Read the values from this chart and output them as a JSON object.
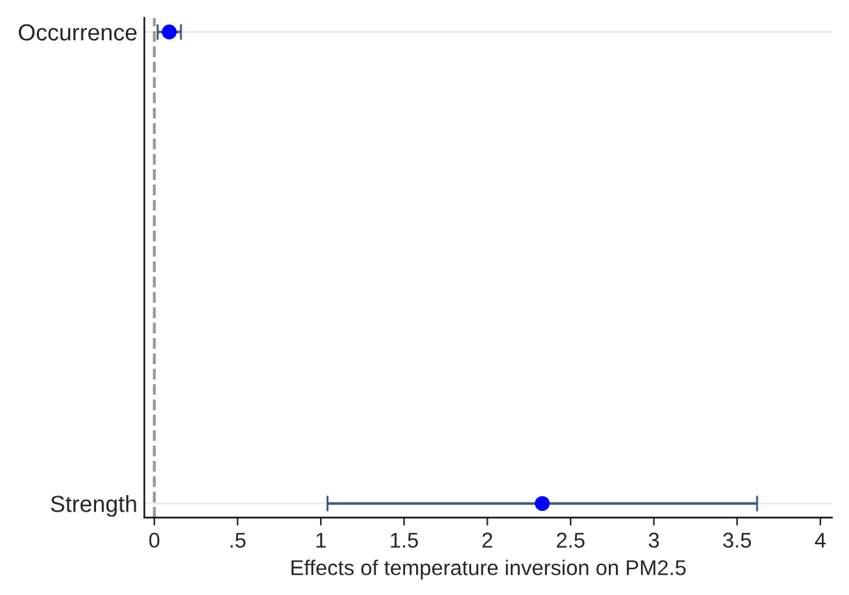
{
  "chart_data": {
    "type": "scatter",
    "orientation": "horizontal",
    "xlabel": "Effects of temperature inversion on PM2.5",
    "categories": [
      "Occurrence",
      "Strength"
    ],
    "series": [
      {
        "color": "#0000ff",
        "values": [
          0.09,
          2.33
        ],
        "errors": [
          [
            0.02,
            0.16
          ],
          [
            1.04,
            3.62
          ]
        ]
      }
    ],
    "xlim": [
      -0.06,
      4.07
    ],
    "xticks": [
      0,
      {
        "value": 0.5,
        "label": ".5"
      },
      1,
      1.5,
      2,
      2.5,
      3,
      3.5,
      4
    ],
    "ref_lines": [
      {
        "axis": "x",
        "value": 0,
        "color": "#999999",
        "line_style": "dashed"
      }
    ],
    "grid": "y",
    "marker": "circle"
  }
}
